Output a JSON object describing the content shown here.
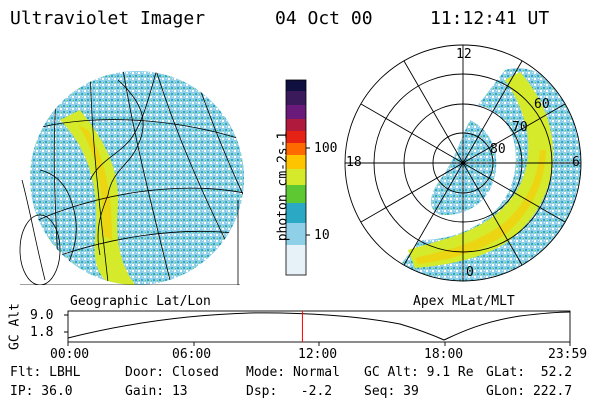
{
  "header": {
    "title": "Ultraviolet Imager",
    "date": "04 Oct 00",
    "time": "11:12:41 UT"
  },
  "left_panel": {
    "caption": "Geographic Lat/Lon"
  },
  "right_panel": {
    "caption": "Apex MLat/MLT",
    "mlt_labels": [
      "12",
      "18",
      "6",
      "0"
    ],
    "lat_labels": [
      "60",
      "70",
      "80"
    ]
  },
  "colorbar": {
    "unit_label": "photon cm-2s-1",
    "ticks": [
      "100",
      "10"
    ],
    "scale": "log",
    "colors": [
      "#101040",
      "#6a1a7a",
      "#b01a3c",
      "#e52214",
      "#ff6a00",
      "#ffc400",
      "#d4ea2a",
      "#5ec832",
      "#2aa8c4",
      "#8fd0e8",
      "#e6f2f8"
    ]
  },
  "altitude_strip": {
    "axis_label": "GC Alt",
    "y_ticks": [
      "9.0",
      "1.8"
    ],
    "time_ticks": [
      "00:00",
      "06:00",
      "12:00",
      "18:00",
      "23:59"
    ],
    "current_time_fraction": 0.467,
    "marker_color": "#ff0000"
  },
  "footer": {
    "row1": {
      "flt": "Flt: LBHL",
      "door": "Door: Closed",
      "mode": "Mode: Normal",
      "gc_alt": "GC Alt: 9.1 Re",
      "glat": "GLat:  52.2"
    },
    "row2": {
      "ip": "IP: 36.0",
      "gain": "Gain: 13",
      "dsp": "Dsp:   -2.2",
      "seq": "Seq: 39",
      "glon": "GLon: 222.7"
    }
  }
}
